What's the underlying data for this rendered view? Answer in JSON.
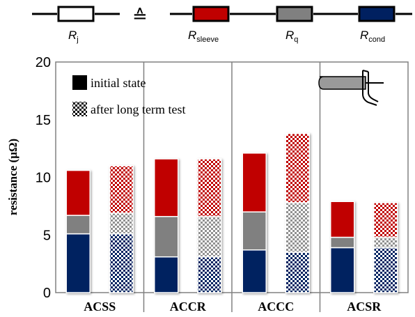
{
  "schematic": {
    "equiv_symbol": "≙",
    "resistors": [
      {
        "name": "R_j",
        "main": "R",
        "sub": "j",
        "color": "#ffffff"
      },
      {
        "name": "R_sleeve",
        "main": "R",
        "sub": "sleeve",
        "color": "#c00000"
      },
      {
        "name": "R_q",
        "main": "R",
        "sub": "q",
        "color": "#808080"
      },
      {
        "name": "R_cond",
        "main": "R",
        "sub": "cond",
        "color": "#002060"
      }
    ]
  },
  "legend": {
    "placement": "top-left",
    "items": [
      {
        "label": "initial state",
        "pattern": "solid"
      },
      {
        "label": "after long term test",
        "pattern": "checkered"
      }
    ]
  },
  "connector_icon": "clamp-connector-icon",
  "colors": {
    "sleeve": "#c00000",
    "q": "#808080",
    "cond": "#002060"
  },
  "chart_data": {
    "type": "bar",
    "stacked": true,
    "title": "",
    "xlabel": "",
    "ylabel": "resistance (µΩ)",
    "ylim": [
      0,
      20
    ],
    "yticks": [
      0,
      5,
      10,
      15,
      20
    ],
    "categories": [
      "ACSS",
      "ACCR",
      "ACCC",
      "ACSR"
    ],
    "group_bars": [
      "initial state",
      "after long term test"
    ],
    "stack_order": [
      "R_cond",
      "R_q",
      "R_sleeve"
    ],
    "series": [
      {
        "name": "initial state",
        "pattern": "solid",
        "R_cond": [
          5.1,
          3.1,
          3.7,
          3.9
        ],
        "R_q": [
          1.6,
          3.5,
          3.3,
          0.9
        ],
        "R_sleeve": [
          3.9,
          5.0,
          5.1,
          3.1
        ]
      },
      {
        "name": "after long term test",
        "pattern": "checkered",
        "R_cond": [
          5.1,
          3.1,
          3.5,
          3.9
        ],
        "R_q": [
          1.8,
          3.5,
          4.3,
          0.9
        ],
        "R_sleeve": [
          4.1,
          5.0,
          6.0,
          3.0
        ]
      }
    ]
  }
}
